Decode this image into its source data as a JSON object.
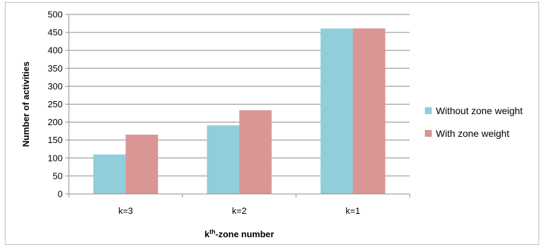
{
  "chart_data": {
    "type": "bar",
    "categories": [
      "k=3",
      "k=2",
      "k=1"
    ],
    "series": [
      {
        "name": "Without zone weight",
        "values": [
          110,
          191,
          461
        ],
        "color": "#92cddc"
      },
      {
        "name": "With zone weight",
        "values": [
          165,
          233,
          461
        ],
        "color": "#d99694"
      }
    ],
    "title": "",
    "xlabel": {
      "base": "k",
      "sup": "th",
      "rest": "-zone number"
    },
    "ylabel": "Number of activities",
    "ylim": [
      0,
      500
    ],
    "yticks": [
      0,
      50,
      100,
      150,
      200,
      250,
      300,
      350,
      400,
      450,
      500
    ],
    "grid": true,
    "legend_position": "right"
  }
}
